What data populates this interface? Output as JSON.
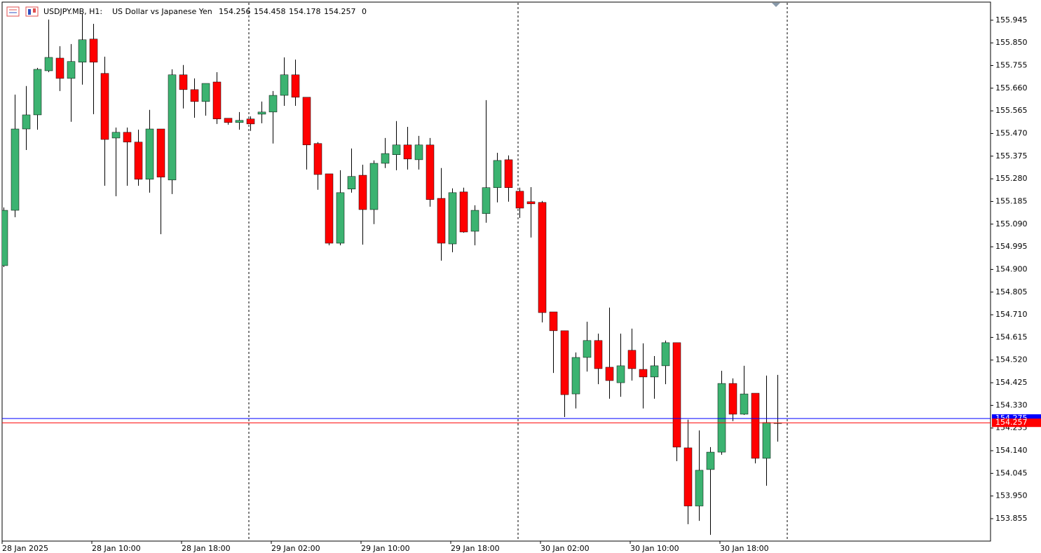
{
  "chart_data": {
    "type": "candlestick",
    "symbol": "USDJPY.MB, H1:",
    "description": "US Dollar vs Japanese Yen",
    "spread": 0,
    "categories": [
      "28 Jan 2025",
      null,
      null,
      null,
      null,
      null,
      null,
      null,
      "28 Jan 10:00",
      null,
      null,
      null,
      null,
      null,
      null,
      null,
      "28 Jan 18:00",
      null,
      null,
      null,
      null,
      null,
      null,
      null,
      "29 Jan 02:00",
      null,
      null,
      null,
      null,
      null,
      null,
      null,
      "29 Jan 10:00",
      null,
      null,
      null,
      null,
      null,
      null,
      null,
      "29 Jan 18:00",
      null,
      null,
      null,
      null,
      null,
      null,
      null,
      "30 Jan 02:00",
      null,
      null,
      null,
      null,
      null,
      null,
      null,
      "30 Jan 10:00",
      null,
      null,
      null,
      null,
      null,
      null,
      null,
      "30 Jan 18:00",
      null,
      null,
      null,
      null,
      null
    ],
    "open": [
      154.916,
      155.148,
      155.489,
      155.548,
      155.733,
      155.786,
      155.701,
      155.769,
      155.866,
      155.722,
      155.451,
      155.475,
      155.434,
      155.278,
      155.489,
      155.275,
      155.716,
      155.654,
      155.604,
      155.686,
      155.534,
      155.516,
      155.531,
      155.551,
      155.56,
      155.63,
      155.716,
      155.622,
      155.428,
      155.301,
      155.01,
      155.237,
      155.295,
      155.151,
      155.345,
      155.381,
      155.422,
      155.36,
      155.422,
      155.198,
      155.007,
      155.225,
      155.06,
      155.134,
      155.243,
      155.36,
      155.228,
      155.184,
      155.181,
      154.722,
      154.643,
      154.378,
      154.531,
      154.602,
      154.49,
      154.425,
      154.561,
      154.481,
      154.449,
      154.496,
      154.593,
      154.152,
      153.908,
      154.061,
      154.134,
      154.422,
      154.293,
      154.381,
      154.108,
      154.256
    ],
    "high": [
      155.16,
      155.633,
      155.669,
      155.745,
      155.948,
      155.836,
      155.845,
      155.971,
      155.93,
      155.792,
      155.495,
      155.495,
      155.486,
      155.569,
      155.489,
      155.739,
      155.757,
      155.701,
      155.68,
      155.727,
      155.534,
      155.56,
      155.542,
      155.604,
      155.648,
      155.789,
      155.78,
      155.622,
      155.434,
      155.301,
      155.316,
      155.407,
      155.339,
      155.357,
      155.451,
      155.522,
      155.498,
      155.46,
      155.451,
      155.325,
      155.24,
      155.243,
      155.169,
      155.61,
      155.389,
      155.378,
      155.243,
      155.245,
      155.187,
      154.722,
      154.643,
      154.552,
      154.681,
      154.631,
      154.74,
      154.631,
      154.652,
      154.59,
      154.537,
      154.602,
      154.593,
      154.27,
      154.225,
      154.155,
      154.475,
      154.443,
      154.496,
      154.381,
      154.455,
      154.458
    ],
    "low": [
      154.91,
      155.119,
      155.401,
      155.486,
      155.727,
      155.648,
      155.519,
      155.675,
      155.551,
      155.251,
      155.207,
      155.251,
      155.251,
      155.222,
      155.048,
      155.216,
      155.575,
      155.536,
      155.545,
      155.51,
      155.507,
      155.486,
      155.481,
      155.513,
      155.428,
      155.586,
      155.586,
      155.319,
      155.234,
      155.001,
      155.001,
      155.222,
      155.004,
      155.09,
      155.325,
      155.316,
      155.319,
      155.319,
      155.163,
      154.937,
      154.972,
      155.054,
      155.001,
      155.096,
      155.181,
      155.184,
      155.116,
      155.034,
      154.678,
      154.466,
      154.281,
      154.317,
      154.472,
      154.419,
      154.358,
      154.366,
      154.434,
      154.317,
      154.358,
      154.419,
      154.096,
      153.832,
      153.846,
      153.787,
      154.123,
      154.264,
      154.29,
      154.087,
      153.993,
      154.178
    ],
    "close": [
      155.148,
      155.489,
      155.548,
      155.739,
      155.789,
      155.701,
      155.772,
      155.863,
      155.769,
      155.445,
      155.475,
      155.434,
      155.278,
      155.489,
      155.287,
      155.716,
      155.654,
      155.604,
      155.68,
      155.531,
      155.516,
      155.525,
      155.51,
      155.56,
      155.63,
      155.716,
      155.622,
      155.422,
      155.298,
      155.01,
      155.222,
      155.29,
      155.151,
      155.345,
      155.386,
      155.422,
      155.363,
      155.422,
      155.193,
      155.01,
      155.222,
      155.057,
      155.148,
      155.243,
      155.357,
      155.243,
      155.157,
      155.175,
      154.719,
      154.643,
      154.375,
      154.531,
      154.602,
      154.484,
      154.434,
      154.496,
      154.484,
      154.449,
      154.496,
      154.593,
      154.155,
      153.908,
      154.058,
      154.134,
      154.422,
      154.293,
      154.378,
      154.108,
      154.258,
      154.257
    ],
    "up_color": "#3cb371",
    "down_color": "#ff0000",
    "bid": {
      "value": 154.257,
      "color": "#ff0000"
    },
    "ask": {
      "value": 154.275,
      "color": "#0000ff"
    },
    "ylim": [
      153.761,
      156.018
    ],
    "yticks": [
      {
        "value": 155.945,
        "label": "155.945"
      },
      {
        "value": 155.85,
        "label": "155.850"
      },
      {
        "value": 155.755,
        "label": "155.755"
      },
      {
        "value": 155.66,
        "label": "155.660"
      },
      {
        "value": 155.565,
        "label": "155.565"
      },
      {
        "value": 155.47,
        "label": "155.470"
      },
      {
        "value": 155.375,
        "label": "155.375"
      },
      {
        "value": 155.28,
        "label": "155.280"
      },
      {
        "value": 155.185,
        "label": "155.185"
      },
      {
        "value": 155.09,
        "label": "155.090"
      },
      {
        "value": 154.995,
        "label": "154.995"
      },
      {
        "value": 154.9,
        "label": "154.900"
      },
      {
        "value": 154.805,
        "label": "154.805"
      },
      {
        "value": 154.71,
        "label": "154.710"
      },
      {
        "value": 154.615,
        "label": "154.615"
      },
      {
        "value": 154.52,
        "label": "154.520"
      },
      {
        "value": 154.425,
        "label": "154.425"
      },
      {
        "value": 154.33,
        "label": "154.330"
      },
      {
        "value": 154.235,
        "label": "154.235"
      },
      {
        "value": 154.14,
        "label": "154.140"
      },
      {
        "value": 154.045,
        "label": "154.045"
      },
      {
        "value": 153.95,
        "label": "153.950"
      },
      {
        "value": 153.855,
        "label": "153.855"
      }
    ]
  }
}
